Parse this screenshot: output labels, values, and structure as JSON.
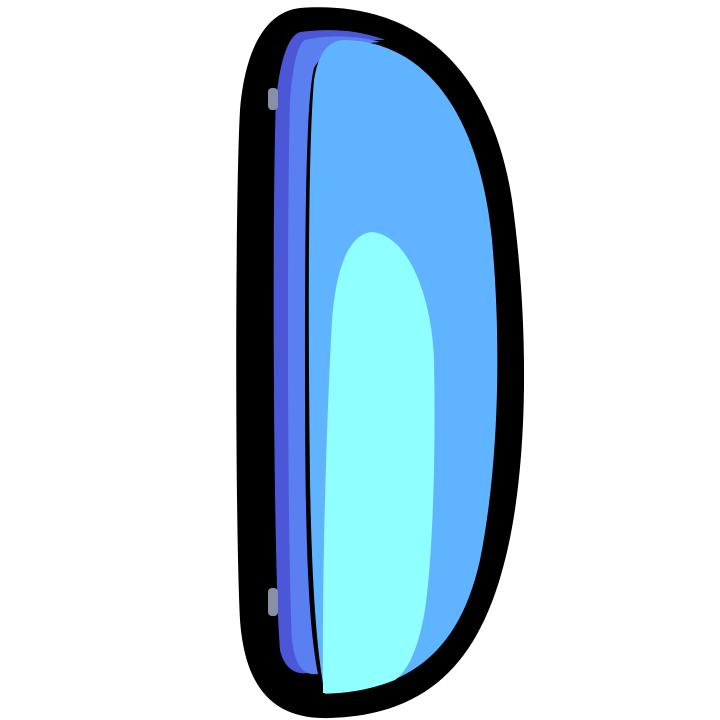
{
  "image": {
    "background_color": "#ffffff",
    "subject": "capsule-shape-icon",
    "colors": {
      "outline": "#000000",
      "edge_dark": "#4b57d6",
      "edge_mid": "#5a7ff0",
      "body": "#60b4ff",
      "highlight": "#90ffff",
      "rivet": "#8a8fa8"
    }
  }
}
